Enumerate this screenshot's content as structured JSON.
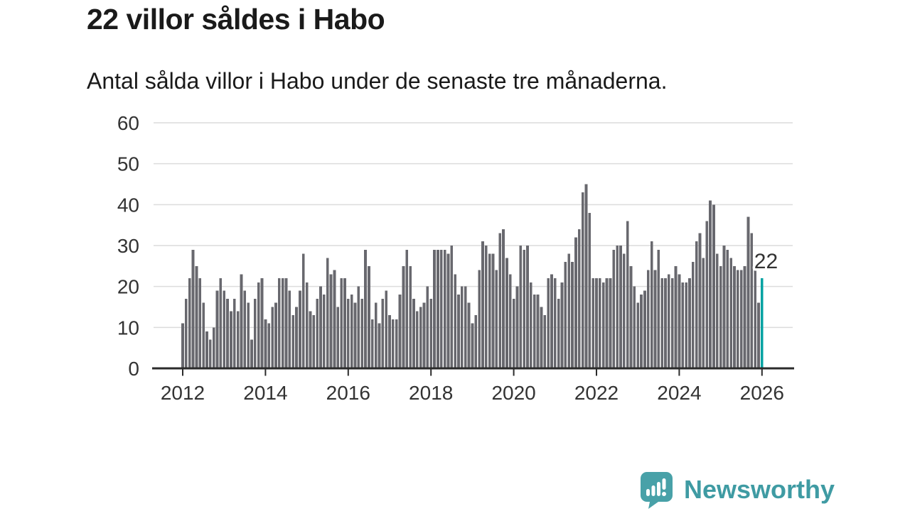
{
  "header": {
    "title": "22 villor såldes i Habo",
    "subtitle": "Antal sålda villor i Habo under de senaste tre månaderna."
  },
  "chart_data": {
    "type": "bar",
    "title": "22 villor såldes i Habo",
    "subtitle": "Antal sålda villor i Habo under de senaste tre månaderna.",
    "xlabel": "",
    "ylabel": "",
    "x_start_year": 2012,
    "x_frequency": "monthly",
    "x_tick_years": [
      2012,
      2014,
      2016,
      2018,
      2020,
      2022,
      2024,
      2026
    ],
    "y_ticks": [
      0,
      10,
      20,
      30,
      40,
      50,
      60
    ],
    "ylim": [
      0,
      60
    ],
    "grid": true,
    "legend": "none",
    "values": [
      11,
      17,
      22,
      29,
      25,
      22,
      16,
      9,
      7,
      10,
      19,
      22,
      19,
      17,
      14,
      17,
      14,
      23,
      19,
      16,
      7,
      17,
      21,
      22,
      12,
      11,
      15,
      16,
      22,
      22,
      22,
      19,
      13,
      15,
      19,
      28,
      21,
      14,
      13,
      17,
      20,
      18,
      27,
      23,
      24,
      15,
      22,
      22,
      17,
      18,
      16,
      20,
      17,
      29,
      25,
      12,
      16,
      11,
      17,
      19,
      13,
      12,
      12,
      18,
      25,
      29,
      25,
      17,
      14,
      15,
      16,
      20,
      17,
      29,
      29,
      29,
      29,
      28,
      30,
      23,
      18,
      20,
      20,
      16,
      11,
      13,
      24,
      31,
      30,
      28,
      28,
      24,
      33,
      34,
      27,
      23,
      17,
      20,
      30,
      29,
      30,
      21,
      18,
      18,
      15,
      13,
      22,
      23,
      22,
      17,
      21,
      26,
      28,
      26,
      32,
      34,
      43,
      45,
      38,
      22,
      22,
      22,
      21,
      22,
      22,
      29,
      30,
      30,
      28,
      36,
      25,
      20,
      16,
      18,
      19,
      24,
      31,
      24,
      29,
      22,
      22,
      23,
      22,
      25,
      23,
      21,
      21,
      22,
      26,
      31,
      33,
      27,
      36,
      41,
      40,
      28,
      25,
      30,
      29,
      27,
      25,
      24,
      24,
      25,
      37,
      33,
      24,
      16,
      22
    ],
    "highlight": {
      "index": 168,
      "value": 22,
      "label": "22"
    },
    "colors": {
      "bar": "#68686e",
      "highlight": "#00a2a2",
      "grid": "#dcdcdc",
      "axis": "#2b2b2b",
      "axis_text": "#333333"
    }
  },
  "branding": {
    "logo_text": "Newsworthy",
    "logo_icon": "bar-chart-speech-bubble-icon",
    "color": "#3f9ba3"
  }
}
